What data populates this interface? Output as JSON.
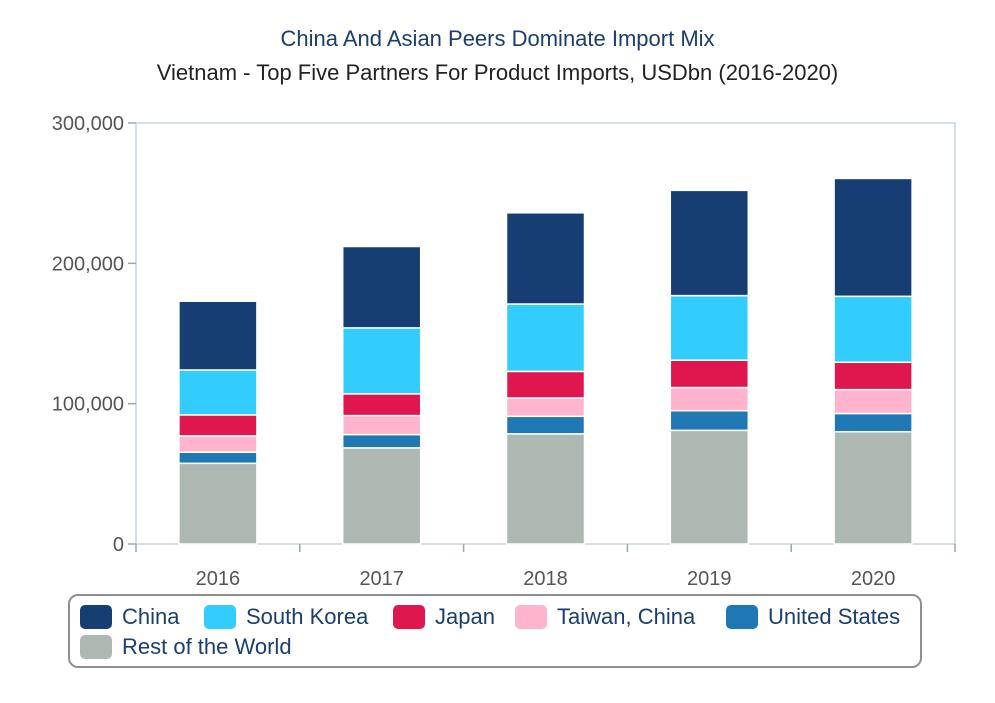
{
  "chart_data": {
    "type": "bar",
    "stacked": true,
    "title": "China And Asian Peers Dominate Import Mix",
    "subtitle": "Vietnam - Top Five Partners For Product Imports, USDbn (2016-2020)",
    "categories": [
      "2016",
      "2017",
      "2018",
      "2019",
      "2020"
    ],
    "ylim": [
      0,
      300000
    ],
    "yticks": [
      0,
      100000,
      200000,
      300000
    ],
    "ytick_labels": [
      "0",
      "100,000",
      "200,000",
      "300,000"
    ],
    "xlabel": "",
    "ylabel": "",
    "legend_position": "bottom",
    "series": [
      {
        "name": "Rest of the World",
        "color": "#aeb8b2",
        "values": [
          57500,
          68500,
          78500,
          81000,
          80000
        ]
      },
      {
        "name": "United States",
        "color": "#1f78b4",
        "values": [
          8000,
          9500,
          12500,
          14000,
          13000
        ]
      },
      {
        "name": "Taiwan, China",
        "color": "#ffb3cc",
        "values": [
          11500,
          13500,
          13000,
          16500,
          17000
        ]
      },
      {
        "name": "Japan",
        "color": "#e0174f",
        "values": [
          15000,
          15500,
          19000,
          19500,
          19500
        ]
      },
      {
        "name": "South Korea",
        "color": "#33ccff",
        "values": [
          32000,
          47000,
          48000,
          46000,
          47000
        ]
      },
      {
        "name": "China",
        "color": "#173e72",
        "values": [
          49000,
          58000,
          65000,
          75000,
          84000
        ]
      }
    ],
    "legend_order": [
      "China",
      "South Korea",
      "Japan",
      "Taiwan, China",
      "United States",
      "Rest of the World"
    ]
  }
}
